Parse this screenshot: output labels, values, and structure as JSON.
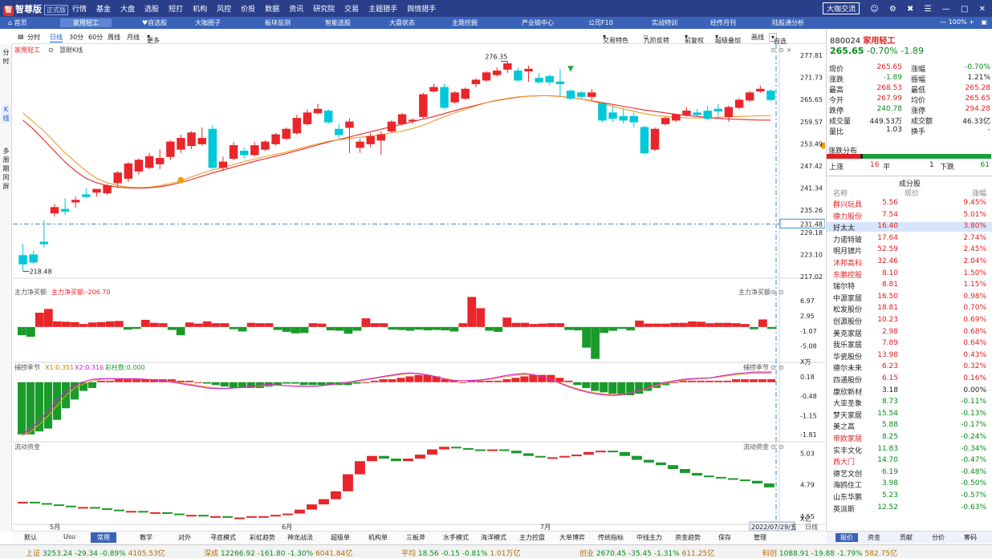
{
  "app": {
    "name": "智尊版",
    "badge": "正式版",
    "bigcoffee": "大咖交流"
  },
  "menu": [
    "行情",
    "基金",
    "大盘",
    "选股",
    "短打",
    "机构",
    "风控",
    "价投",
    "数据",
    "资讯",
    "研究院",
    "交易",
    "主题猎手",
    "舆情猎手"
  ],
  "tabs": [
    "首页",
    "家用轻工",
    "自选股",
    "大咖圈子",
    "板块监测",
    "智能选股",
    "大盘状态",
    "主题挖掘",
    "产业链中心",
    "公司F10",
    "实战特训",
    "经传月刊",
    "陆股通分析"
  ],
  "zoom": "100%",
  "toolbar": {
    "items": [
      "分时",
      "日线",
      "30分",
      "60分",
      "周线",
      "月线",
      "更多"
    ],
    "right": [
      "交易特色",
      "九阶反转",
      "前复权",
      "超级叠加",
      "画线",
      "-自选"
    ]
  },
  "leftnav": [
    "分时",
    "K线",
    "多周期同屏"
  ],
  "main": {
    "name": "家用轻工",
    "indicator": "慧眼K线",
    "hi_label": "276.35",
    "lo_label": "218.48"
  },
  "price_axis": [
    "277.81",
    "271.73",
    "265.65",
    "259.57",
    "253.49",
    "247.42",
    "241.34",
    "235.26",
    "229.18",
    "223.10",
    "217.02"
  ],
  "price_mark": "231.48",
  "sub1": {
    "title": "主力净买额",
    "value_label": "主力净买额:-206.70",
    "right": "主力净买额",
    "axis": [
      "6.97",
      "2.95",
      "-1.07",
      "-5.08"
    ],
    "unit": "X万"
  },
  "sub2": {
    "title": "捕捞季节",
    "x1": "X1:0.351",
    "x2": "X2:0.316",
    "col": "彩柱数:0.000",
    "right": "捕捞季节",
    "axis": [
      "0.18",
      "-0.48",
      "-1.15",
      "-1.81"
    ]
  },
  "sub3": {
    "title": "流动资金",
    "right": "流动资金",
    "axis": [
      "5.03",
      "4.79",
      "4.55"
    ],
    "unit": "X亿"
  },
  "xaxis": {
    "m5": "5月",
    "m6": "6月",
    "m7": "7月",
    "date": "2022/07/29/五",
    "period": "日线"
  },
  "quote": {
    "code": "880024",
    "name": "家用轻工",
    "price": "265.65",
    "pct": "-0.70%",
    "chg": "-1.89",
    "rows": [
      [
        "现价",
        "265.65",
        "涨幅",
        "-0.70%"
      ],
      [
        "涨跌",
        "-1.89",
        "振幅",
        "1.21%"
      ],
      [
        "最高",
        "268.53",
        "最低",
        "265.28"
      ],
      [
        "今开",
        "267.99",
        "均价",
        "265.65"
      ],
      [
        "跌停",
        "240.78",
        "涨停",
        "294.28"
      ],
      [
        "成交量",
        "449.53万",
        "成交额",
        "46.33亿"
      ],
      [
        "量比",
        "1.03",
        "换手",
        "-"
      ]
    ],
    "dist_title": "涨跌分布",
    "dist": {
      "up_label": "上涨",
      "up": "16",
      "flat_label": "平",
      "flat": "1",
      "down_label": "下跌",
      "down": "61"
    },
    "cons_title": "成分股",
    "cons_head": [
      "名称",
      "现价",
      "涨幅"
    ],
    "cons": [
      [
        "群兴玩具",
        "5.56",
        "9.45%",
        "r"
      ],
      [
        "德力股份",
        "7.54",
        "5.01%",
        "r"
      ],
      [
        "好太太",
        "16.40",
        "3.80%",
        "s"
      ],
      [
        "力诺特玻",
        "17.64",
        "2.74%",
        "b"
      ],
      [
        "明月镜片",
        "52.59",
        "2.45%",
        "b"
      ],
      [
        "沐邦高科",
        "32.46",
        "2.04%",
        "r"
      ],
      [
        "东鹏控股",
        "8.10",
        "1.50%",
        "r"
      ],
      [
        "瑞尔特",
        "8.81",
        "1.15%",
        "b"
      ],
      [
        "中源家居",
        "16.50",
        "0.98%",
        "b"
      ],
      [
        "松发股份",
        "18.81",
        "0.70%",
        "b"
      ],
      [
        "创源股份",
        "10.23",
        "0.69%",
        "b"
      ],
      [
        "美克家居",
        "2.98",
        "0.68%",
        "b"
      ],
      [
        "我乐家居",
        "7.89",
        "0.64%",
        "b"
      ],
      [
        "华瓷股份",
        "13.98",
        "0.43%",
        "b"
      ],
      [
        "德尔未来",
        "6.23",
        "0.32%",
        "b"
      ],
      [
        "四通股份",
        "6.15",
        "0.16%",
        "b"
      ],
      [
        "康欣新材",
        "3.18",
        "0.00%",
        "b"
      ],
      [
        "大亚圣象",
        "8.73",
        "-0.11%",
        "b"
      ],
      [
        "梦天家居",
        "15.54",
        "-0.13%",
        "b"
      ],
      [
        "美之高",
        "5.88",
        "-0.17%",
        "b"
      ],
      [
        "帝欧家居",
        "8.25",
        "-0.24%",
        "r"
      ],
      [
        "实丰文化",
        "11.83",
        "-0.34%",
        "b"
      ],
      [
        "西大门",
        "14.70",
        "-0.47%",
        "r"
      ],
      [
        "德艺文创",
        "6.19",
        "-0.48%",
        "b"
      ],
      [
        "海鸥住工",
        "3.98",
        "-0.50%",
        "b"
      ],
      [
        "山东华鹏",
        "5.23",
        "-0.57%",
        "b"
      ],
      [
        "英派斯",
        "12.52",
        "-0.63%",
        "b"
      ]
    ]
  },
  "rptabs": [
    "报价",
    "资金",
    "贡献",
    "分价",
    "筹码"
  ],
  "bottomtabs": [
    "默认",
    "Usu",
    "常用",
    "教学",
    "对外",
    "寻底模式",
    "彩虹趋势",
    "神龙战法",
    "超级单",
    "机构单",
    "三板斧",
    "水手模式",
    "海洋模式",
    "主力控盘",
    "大单博弈",
    "传统指标",
    "中线主力",
    "资金趋势",
    "保存",
    "管理"
  ],
  "status": [
    {
      "n": "上证",
      "v": "3253.24",
      "c": "-29.34",
      "p": "-0.89%",
      "a": "4105.53亿"
    },
    {
      "n": "深成",
      "v": "12266.92",
      "c": "-161.80",
      "p": "-1.30%",
      "a": "6041.84亿"
    },
    {
      "n": "平均",
      "v": "18.56",
      "c": "-0.15",
      "p": "-0.81%",
      "a": "1.01万亿"
    },
    {
      "n": "创业",
      "v": "2670.45",
      "c": "-35.45",
      "p": "-1.31%",
      "a": "611.25亿"
    },
    {
      "n": "科创",
      "v": "1088.91",
      "c": "-19.88",
      "p": "-1.79%",
      "a": "582.75亿"
    }
  ],
  "colors": {
    "up": "#e8262b",
    "down": "#00c8d8",
    "green": "#1a9a2a",
    "title_bar": "#2a3f8a",
    "tab_bar": "#3a62b8"
  },
  "chart_data": {
    "type": "candlestick",
    "candles": [
      [
        222.8,
        226.0,
        220.5,
        218.5
      ],
      [
        223.0,
        224.2,
        221.0,
        220.5
      ],
      [
        226.5,
        232.5,
        226.0,
        225.0
      ],
      [
        234.5,
        237.0,
        236.0,
        233.5
      ],
      [
        235.5,
        238.5,
        235.0,
        234.0
      ],
      [
        237.5,
        239.0,
        238.0,
        236.0
      ],
      [
        239.5,
        241.3,
        239.0,
        238.5
      ],
      [
        240.2,
        241.0,
        241.0,
        239.0
      ],
      [
        240.0,
        242.5,
        242.0,
        239.5
      ],
      [
        242.8,
        246.0,
        245.5,
        241.5
      ],
      [
        244.0,
        248.5,
        248.0,
        243.0
      ],
      [
        246.0,
        249.5,
        249.0,
        245.0
      ],
      [
        247.0,
        251.0,
        250.0,
        246.5
      ],
      [
        248.0,
        252.0,
        249.5,
        246.5
      ],
      [
        250.0,
        254.5,
        254.0,
        249.0
      ],
      [
        252.0,
        256.0,
        255.0,
        251.0
      ],
      [
        253.0,
        257.0,
        256.5,
        252.0
      ],
      [
        253.5,
        258.0,
        255.0,
        253.0
      ],
      [
        257.5,
        258.5,
        247.0,
        246.5
      ],
      [
        247.0,
        250.0,
        248.5,
        246.0
      ],
      [
        249.5,
        254.0,
        253.0,
        249.0
      ],
      [
        251.5,
        252.5,
        250.5,
        249.5
      ],
      [
        250.5,
        254.0,
        253.0,
        250.0
      ],
      [
        252.0,
        254.5,
        254.0,
        251.5
      ],
      [
        253.5,
        256.5,
        256.0,
        253.0
      ],
      [
        255.0,
        258.0,
        257.5,
        254.5
      ],
      [
        256.5,
        261.5,
        260.5,
        256.0
      ],
      [
        259.0,
        263.0,
        262.0,
        258.5
      ],
      [
        262.0,
        264.5,
        263.0,
        261.5
      ],
      [
        262.5,
        263.0,
        259.5,
        259.0
      ],
      [
        257.5,
        259.0,
        256.0,
        255.0
      ],
      [
        258.0,
        260.5,
        259.5,
        251.0
      ],
      [
        252.5,
        255.0,
        254.0,
        251.0
      ],
      [
        253.5,
        256.5,
        255.5,
        252.5
      ],
      [
        254.5,
        257.0,
        256.0,
        250.5
      ],
      [
        257.0,
        260.0,
        259.5,
        256.5
      ],
      [
        259.0,
        262.0,
        261.5,
        258.5
      ],
      [
        260.0,
        260.5,
        260.0,
        259.0
      ],
      [
        261.0,
        267.5,
        267.0,
        260.5
      ],
      [
        268.0,
        270.0,
        269.0,
        267.5
      ],
      [
        269.0,
        270.0,
        263.5,
        263.0
      ],
      [
        265.0,
        268.0,
        267.5,
        264.5
      ],
      [
        266.0,
        269.0,
        268.5,
        265.5
      ],
      [
        270.0,
        271.5,
        271.0,
        269.0
      ],
      [
        271.0,
        273.5,
        273.0,
        270.5
      ],
      [
        272.5,
        274.5,
        273.5,
        272.0
      ],
      [
        274.0,
        276.3,
        275.5,
        273.0
      ],
      [
        273.5,
        274.5,
        271.0,
        270.5
      ],
      [
        273.5,
        275.0,
        274.0,
        270.5
      ],
      [
        271.5,
        273.0,
        270.5,
        270.0
      ],
      [
        272.0,
        272.5,
        270.5,
        269.5
      ],
      [
        270.5,
        274.0,
        270.0,
        266.5
      ],
      [
        268.0,
        268.5,
        266.0,
        265.5
      ],
      [
        267.5,
        268.0,
        266.5,
        266.0
      ],
      [
        266.5,
        268.5,
        267.5,
        265.5
      ],
      [
        264.5,
        265.0,
        260.0,
        259.5
      ],
      [
        262.0,
        264.0,
        260.5,
        259.5
      ],
      [
        261.0,
        263.0,
        260.0,
        259.0
      ],
      [
        261.0,
        262.0,
        259.5,
        258.0
      ],
      [
        258.0,
        258.5,
        251.0,
        250.5
      ],
      [
        252.0,
        258.0,
        257.5,
        251.5
      ],
      [
        259.0,
        261.0,
        260.5,
        258.5
      ],
      [
        260.0,
        261.5,
        261.5,
        259.5
      ],
      [
        261.5,
        263.5,
        262.5,
        261.0
      ],
      [
        262.0,
        263.0,
        261.5,
        261.0
      ],
      [
        262.5,
        264.0,
        260.5,
        260.0
      ],
      [
        263.0,
        264.5,
        262.5,
        261.0
      ],
      [
        261.0,
        264.0,
        263.5,
        259.5
      ],
      [
        263.5,
        266.0,
        265.5,
        263.0
      ],
      [
        265.5,
        268.0,
        267.5,
        265.0
      ],
      [
        268.0,
        269.5,
        268.5,
        267.5
      ],
      [
        267.99,
        268.53,
        265.65,
        265.28
      ]
    ],
    "y_range": [
      217.02,
      277.81
    ],
    "hi_label": 276.35,
    "lo_label": 218.48,
    "ma_fast": [
      262,
      259.5,
      257,
      254,
      251,
      248.5,
      246,
      244,
      242.8,
      242,
      241.6,
      241.5,
      241.6,
      242.0,
      242.6,
      243.4,
      244.4,
      245.4,
      246.3,
      247.0,
      247.8,
      248.6,
      249.3,
      250.0,
      250.6,
      251.2,
      252.0,
      252.8,
      253.5,
      254.2,
      254.6,
      255.0,
      255.3,
      255.6,
      256.0,
      256.5,
      257.0,
      257.7,
      258.6,
      259.8,
      260.9,
      262.0,
      263.0,
      263.9,
      264.8,
      265.5,
      266.0,
      266.4,
      266.6,
      266.7,
      266.7,
      266.5,
      266.2,
      265.8,
      265.2,
      264.5,
      263.8,
      263.1,
      262.4,
      261.8,
      261.3,
      261.0,
      260.8,
      260.6,
      260.6,
      260.7,
      260.8,
      260.9,
      261.0,
      261.1,
      261.2,
      261.3
    ],
    "ma_slow": [
      260,
      257.5,
      254.5,
      251.5,
      248.5,
      246,
      244,
      242.8,
      242,
      241.6,
      241.4,
      241.3,
      241.4,
      241.7,
      242.2,
      242.9,
      243.7,
      244.6,
      245.5,
      246.3,
      247.1,
      247.9,
      248.7,
      249.4,
      250.1,
      250.8,
      251.6,
      252.4,
      253.2,
      254.0,
      254.7,
      255.4,
      256.1,
      256.8,
      257.5,
      258.2,
      258.9,
      259.6,
      260.3,
      261.0,
      261.8,
      262.6,
      263.4,
      264.1,
      264.8,
      265.4,
      265.9,
      266.3,
      266.6,
      266.7,
      266.7,
      266.5,
      266.2,
      265.8,
      265.3,
      264.8,
      264.3,
      263.8,
      263.3,
      262.8,
      262.4,
      262.0,
      261.6,
      261.3,
      261.0,
      260.7,
      260.5,
      260.3,
      260.2,
      260.1,
      260.0,
      260.0
    ],
    "net_buy": [
      -2.2,
      -2.6,
      3.8,
      4.8,
      1.5,
      1.4,
      1.3,
      0.8,
      1.2,
      1.3,
      1.5,
      1.6,
      -0.7,
      -0.5,
      1.9,
      1.1,
      1.0,
      -0.8,
      -2.2,
      1.2,
      0.9,
      1.5,
      1.0,
      1.0,
      -0.6,
      -1.2,
      1.1,
      1.0,
      1.0,
      -0.8,
      -1.3,
      -1.7,
      -1.6,
      1.0,
      0.9,
      -0.9,
      -1.0,
      -1.8,
      -1.0,
      2.3,
      1.0,
      1.0,
      -0.7,
      -0.8,
      -1.0,
      -0.7,
      -0.9,
      -0.8,
      -0.9,
      -1.2,
      1.0,
      8.0,
      5.0,
      -1.0,
      -1.3,
      2.5,
      1.1,
      1.1,
      0.8,
      0.9,
      1.0,
      1.0,
      -0.8,
      -0.9,
      -5.5,
      -8.5,
      -1.6,
      -1.0,
      -0.5,
      -0.9,
      1.7,
      0.9,
      0.9,
      0.9,
      1.1,
      1.1,
      1.5,
      1.4,
      1.0,
      1.1,
      1.1,
      1.0,
      0.8,
      -0.6,
      2.0,
      -0.5
    ],
    "season_bars": [
      -1.8,
      -1.8,
      -1.7,
      -1.6,
      -1.3,
      -0.9,
      -0.6,
      -0.3,
      -0.2,
      0.05,
      0.05,
      0.1,
      0.1,
      0.1,
      0.1,
      0.1,
      0.1,
      0.1,
      0.05,
      0.05,
      0.0,
      -0.05,
      -0.1,
      -0.15,
      -0.2,
      -0.2,
      -0.2,
      -0.2,
      -0.15,
      -0.1,
      -0.05,
      -0.05,
      -0.1,
      -0.1,
      -0.1,
      -0.1,
      -0.1,
      -0.1,
      -0.05,
      0.0,
      0.05,
      0.1,
      0.1,
      0.15,
      0.2,
      0.25,
      0.25,
      0.2,
      0.1,
      0.05,
      0.0,
      0.05,
      0.05,
      0.05,
      0.05,
      0.1,
      0.15,
      0.2,
      0.25,
      0.25,
      0.25,
      0.15,
      0.05,
      -0.1,
      -0.2,
      -0.3,
      -0.35,
      -0.4,
      -0.45,
      -0.45,
      -0.4,
      -0.3,
      -0.2,
      -0.1,
      0.0,
      0.05,
      0.05,
      0.05,
      0.05,
      0.05,
      0.05,
      0.1,
      0.1,
      0.1,
      0.1,
      0.1
    ],
    "season_x1": [
      -1.8,
      -1.6,
      -1.3,
      -1.0,
      -0.6,
      -0.3,
      -0.1,
      0.02,
      0.1,
      0.12,
      0.12,
      0.12,
      0.12,
      0.12,
      0.1,
      0.08,
      0.05,
      0.0,
      -0.05,
      -0.1,
      -0.15,
      -0.2,
      -0.22,
      -0.22,
      -0.2,
      -0.18,
      -0.15,
      -0.1,
      -0.08,
      -0.1,
      -0.12,
      -0.14,
      -0.15,
      -0.15,
      -0.12,
      -0.08,
      -0.04,
      0.0,
      0.05,
      0.1,
      0.15,
      0.2,
      0.25,
      0.3,
      0.32,
      0.3,
      0.25,
      0.18,
      0.1,
      0.05,
      0.05,
      0.06,
      0.08,
      0.12,
      0.18,
      0.24,
      0.28,
      0.3,
      0.26,
      0.18,
      0.08,
      -0.04,
      -0.16,
      -0.26,
      -0.34,
      -0.4,
      -0.44,
      -0.46,
      -0.44,
      -0.38,
      -0.28,
      -0.18,
      -0.08,
      0.0,
      0.05,
      0.1,
      0.12,
      0.14,
      0.15,
      0.2,
      0.25,
      0.3,
      0.32,
      0.35,
      0.35,
      0.35
    ],
    "season_x2": [
      -1.85,
      -1.7,
      -1.45,
      -1.15,
      -0.8,
      -0.45,
      -0.2,
      -0.05,
      0.05,
      0.1,
      0.11,
      0.11,
      0.11,
      0.11,
      0.1,
      0.08,
      0.05,
      0.02,
      -0.02,
      -0.07,
      -0.12,
      -0.17,
      -0.2,
      -0.21,
      -0.2,
      -0.18,
      -0.16,
      -0.12,
      -0.1,
      -0.1,
      -0.12,
      -0.13,
      -0.14,
      -0.14,
      -0.12,
      -0.09,
      -0.05,
      -0.01,
      0.03,
      0.08,
      0.13,
      0.18,
      0.22,
      0.27,
      0.3,
      0.29,
      0.25,
      0.19,
      0.12,
      0.07,
      0.05,
      0.05,
      0.07,
      0.1,
      0.15,
      0.2,
      0.24,
      0.27,
      0.25,
      0.18,
      0.09,
      -0.02,
      -0.13,
      -0.23,
      -0.31,
      -0.37,
      -0.41,
      -0.43,
      -0.42,
      -0.37,
      -0.29,
      -0.2,
      -0.11,
      -0.03,
      0.03,
      0.07,
      0.1,
      0.12,
      0.14,
      0.18,
      0.22,
      0.26,
      0.29,
      0.31,
      0.31,
      0.32
    ],
    "flow": [
      4.66,
      4.65,
      4.64,
      4.63,
      4.62,
      4.62,
      4.61,
      4.6,
      4.59,
      4.59,
      4.58,
      4.58,
      4.57,
      4.56,
      4.56,
      4.55,
      4.55,
      4.54,
      4.54,
      4.55,
      4.55,
      4.56,
      4.57,
      4.6,
      4.64,
      4.68,
      4.74,
      4.87,
      4.97,
      5.01,
      4.99,
      4.97,
      4.99,
      5.02,
      5.06,
      5.08,
      5.07,
      5.06,
      5.05,
      5.06,
      5.05,
      5.03,
      5.01,
      5.0,
      5.0,
      5.01,
      5.02,
      5.04,
      5.05,
      5.04,
      5.01,
      4.98,
      4.96,
      4.94,
      4.91,
      4.88,
      4.86,
      4.85,
      4.84,
      4.83,
      4.82,
      4.8,
      4.77
    ],
    "flow_range": [
      4.5,
      5.1
    ],
    "net_range": [
      -9.0,
      10.0
    ],
    "season_range": [
      -2.0,
      0.6
    ]
  }
}
